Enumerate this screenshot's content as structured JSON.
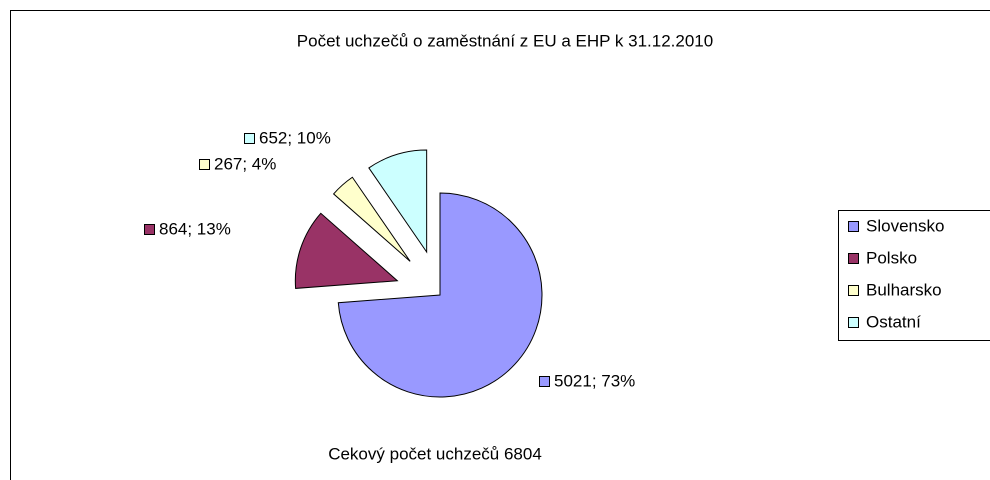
{
  "chart_data": {
    "type": "pie",
    "title": "Počet uchzečů o zaměstnání z EU a EHP k 31.12.2010",
    "annotation": "Cekový počet uchzečů 6804",
    "categories": [
      "Slovensko",
      "Polsko",
      "Bulharsko",
      "Ostatní"
    ],
    "values": [
      5021,
      864,
      267,
      652
    ],
    "value_labels": [
      "5021; 73%",
      "864; 13%",
      "267; 4%",
      "652; 10%"
    ],
    "colors": [
      "#9999ff",
      "#993366",
      "#ffffcc",
      "#ccffff"
    ],
    "legend": "right"
  }
}
